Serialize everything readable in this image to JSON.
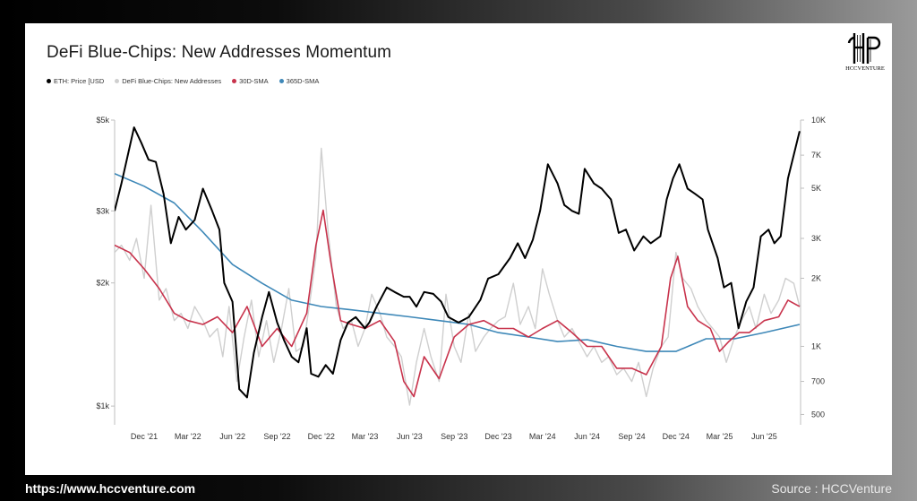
{
  "chart_data": {
    "type": "line",
    "title": "DeFi Blue-Chips: New Addresses Momentum",
    "legend_position": "top-left",
    "grid": false,
    "x_tick_labels": [
      "Dec '21",
      "Mar '22",
      "Jun '22",
      "Sep '22",
      "Dec '22",
      "Mar '23",
      "Jun '23",
      "Sep '23",
      "Dec '23",
      "Mar '24",
      "Jun '24",
      "Sep '24",
      "Dec '24",
      "Mar '25",
      "Jun '25"
    ],
    "x_ticks": [
      "2021-12-01",
      "2022-03-01",
      "2022-06-01",
      "2022-09-01",
      "2022-12-01",
      "2023-03-01",
      "2023-06-01",
      "2023-09-01",
      "2023-12-01",
      "2024-03-01",
      "2024-06-01",
      "2024-09-01",
      "2024-12-01",
      "2025-03-01",
      "2025-06-01"
    ],
    "x_range": [
      "2021-10-01",
      "2025-08-15"
    ],
    "left_axis": {
      "label": "",
      "scale": "log",
      "unit": "USD",
      "range": [
        900,
        5000
      ],
      "ticks": [
        5000,
        3000,
        2000,
        1000
      ],
      "tick_labels": [
        "$5k",
        "$3k",
        "$2k",
        "$1k"
      ]
    },
    "right_axis": {
      "label": "",
      "scale": "log",
      "range": [
        450,
        10000
      ],
      "ticks": [
        10000,
        7000,
        5000,
        3000,
        2000,
        1000,
        700,
        500
      ],
      "tick_labels": [
        "10K",
        "7K",
        "5K",
        "3K",
        "2K",
        "1K",
        "700",
        "500"
      ]
    },
    "series": [
      {
        "name": "ETH: Price [USD",
        "axis": "left",
        "color": "#000000",
        "x": [
          "2021-10-01",
          "2021-10-15",
          "2021-11-01",
          "2021-11-10",
          "2021-11-25",
          "2021-12-10",
          "2021-12-25",
          "2022-01-10",
          "2022-01-25",
          "2022-02-10",
          "2022-02-25",
          "2022-03-15",
          "2022-04-01",
          "2022-04-20",
          "2022-05-05",
          "2022-05-15",
          "2022-06-01",
          "2022-06-15",
          "2022-07-01",
          "2022-07-15",
          "2022-08-01",
          "2022-08-15",
          "2022-09-01",
          "2022-09-15",
          "2022-10-01",
          "2022-10-15",
          "2022-11-01",
          "2022-11-10",
          "2022-11-25",
          "2022-12-10",
          "2022-12-25",
          "2023-01-10",
          "2023-01-25",
          "2023-02-10",
          "2023-03-01",
          "2023-03-10",
          "2023-03-25",
          "2023-04-15",
          "2023-05-01",
          "2023-05-20",
          "2023-06-01",
          "2023-06-15",
          "2023-07-01",
          "2023-07-20",
          "2023-08-05",
          "2023-08-20",
          "2023-09-10",
          "2023-10-01",
          "2023-10-25",
          "2023-11-10",
          "2023-12-01",
          "2023-12-25",
          "2024-01-10",
          "2024-01-25",
          "2024-02-10",
          "2024-02-25",
          "2024-03-12",
          "2024-04-01",
          "2024-04-15",
          "2024-05-01",
          "2024-05-15",
          "2024-05-27",
          "2024-06-15",
          "2024-07-01",
          "2024-07-20",
          "2024-08-05",
          "2024-08-20",
          "2024-09-06",
          "2024-09-25",
          "2024-10-10",
          "2024-10-30",
          "2024-11-12",
          "2024-11-25",
          "2024-12-08",
          "2024-12-25",
          "2025-01-10",
          "2025-01-25",
          "2025-02-05",
          "2025-02-25",
          "2025-03-10",
          "2025-03-25",
          "2025-04-09",
          "2025-04-25",
          "2025-05-10",
          "2025-05-25",
          "2025-06-10",
          "2025-06-22",
          "2025-07-05",
          "2025-07-20",
          "2025-08-05",
          "2025-08-13"
        ],
        "y": [
          3000,
          3500,
          4300,
          4800,
          4400,
          4000,
          3950,
          3300,
          2500,
          2900,
          2700,
          2850,
          3400,
          3000,
          2700,
          2000,
          1800,
          1100,
          1050,
          1350,
          1650,
          1900,
          1600,
          1450,
          1320,
          1280,
          1550,
          1200,
          1180,
          1260,
          1200,
          1450,
          1600,
          1650,
          1550,
          1600,
          1750,
          1950,
          1900,
          1850,
          1850,
          1750,
          1900,
          1880,
          1800,
          1650,
          1600,
          1650,
          1820,
          2050,
          2100,
          2300,
          2500,
          2300,
          2550,
          3000,
          3900,
          3500,
          3100,
          3000,
          2950,
          3800,
          3500,
          3400,
          3200,
          2650,
          2700,
          2400,
          2600,
          2500,
          2600,
          3200,
          3600,
          3900,
          3400,
          3300,
          3200,
          2700,
          2300,
          1950,
          2000,
          1550,
          1800,
          1950,
          2600,
          2700,
          2500,
          2600,
          3600,
          4300,
          4700
        ]
      },
      {
        "name": "DeFi Blue-Chips: New Addresses",
        "axis": "right",
        "color": "#cfcfcf",
        "x": [
          "2021-10-01",
          "2021-10-15",
          "2021-11-01",
          "2021-11-15",
          "2021-12-01",
          "2021-12-15",
          "2022-01-01",
          "2022-01-15",
          "2022-02-01",
          "2022-02-15",
          "2022-03-01",
          "2022-03-15",
          "2022-04-01",
          "2022-04-15",
          "2022-05-01",
          "2022-05-12",
          "2022-05-25",
          "2022-06-10",
          "2022-06-25",
          "2022-07-10",
          "2022-07-25",
          "2022-08-10",
          "2022-08-25",
          "2022-09-10",
          "2022-09-25",
          "2022-10-10",
          "2022-10-25",
          "2022-11-08",
          "2022-11-20",
          "2022-12-01",
          "2022-12-15",
          "2023-01-01",
          "2023-01-15",
          "2023-02-01",
          "2023-02-15",
          "2023-03-01",
          "2023-03-15",
          "2023-04-01",
          "2023-04-15",
          "2023-05-01",
          "2023-05-15",
          "2023-06-01",
          "2023-06-15",
          "2023-07-01",
          "2023-07-15",
          "2023-08-01",
          "2023-08-15",
          "2023-09-01",
          "2023-09-15",
          "2023-10-01",
          "2023-10-15",
          "2023-11-01",
          "2023-11-15",
          "2023-12-01",
          "2023-12-15",
          "2024-01-01",
          "2024-01-15",
          "2024-02-01",
          "2024-02-15",
          "2024-03-01",
          "2024-03-15",
          "2024-04-01",
          "2024-04-15",
          "2024-05-01",
          "2024-05-15",
          "2024-06-01",
          "2024-06-15",
          "2024-07-01",
          "2024-07-15",
          "2024-08-01",
          "2024-08-15",
          "2024-09-01",
          "2024-09-15",
          "2024-10-01",
          "2024-10-15",
          "2024-11-01",
          "2024-11-15",
          "2024-12-01",
          "2024-12-15",
          "2025-01-01",
          "2025-01-15",
          "2025-02-01",
          "2025-02-15",
          "2025-03-01",
          "2025-03-15",
          "2025-04-01",
          "2025-04-15",
          "2025-05-01",
          "2025-05-15",
          "2025-06-01",
          "2025-06-15",
          "2025-07-01",
          "2025-07-15",
          "2025-08-01",
          "2025-08-13"
        ],
        "y": [
          2600,
          2800,
          2400,
          3000,
          2000,
          4200,
          1600,
          1800,
          1300,
          1400,
          1200,
          1500,
          1300,
          1100,
          1200,
          900,
          1500,
          700,
          1100,
          1600,
          900,
          1300,
          850,
          1200,
          1800,
          950,
          1000,
          1600,
          2500,
          7500,
          3200,
          1500,
          1200,
          1300,
          1000,
          1200,
          1700,
          1400,
          1100,
          1000,
          900,
          550,
          850,
          1200,
          900,
          700,
          1700,
          1000,
          850,
          1400,
          950,
          1100,
          1200,
          1300,
          1350,
          1900,
          1250,
          1500,
          1200,
          2200,
          1700,
          1300,
          1100,
          1200,
          1050,
          900,
          1000,
          850,
          900,
          750,
          800,
          700,
          850,
          600,
          800,
          1000,
          1100,
          2600,
          2000,
          1800,
          1500,
          1300,
          1200,
          1100,
          850,
          1100,
          1300,
          1500,
          1200,
          1700,
          1400,
          1600,
          2000,
          1900,
          1500
        ]
      },
      {
        "name": "30D-SMA",
        "axis": "right",
        "color": "#c8334c",
        "x": [
          "2021-10-01",
          "2021-11-01",
          "2021-12-01",
          "2022-01-01",
          "2022-02-01",
          "2022-03-01",
          "2022-04-01",
          "2022-05-01",
          "2022-06-01",
          "2022-07-01",
          "2022-08-01",
          "2022-09-01",
          "2022-10-01",
          "2022-11-01",
          "2022-11-20",
          "2022-12-05",
          "2022-12-20",
          "2023-01-10",
          "2023-02-01",
          "2023-03-01",
          "2023-04-01",
          "2023-05-01",
          "2023-05-20",
          "2023-06-10",
          "2023-07-01",
          "2023-08-01",
          "2023-09-01",
          "2023-10-01",
          "2023-11-01",
          "2023-12-01",
          "2024-01-01",
          "2024-02-01",
          "2024-03-01",
          "2024-04-01",
          "2024-05-01",
          "2024-06-01",
          "2024-07-01",
          "2024-08-01",
          "2024-09-01",
          "2024-10-01",
          "2024-11-01",
          "2024-11-20",
          "2024-12-05",
          "2024-12-25",
          "2025-01-15",
          "2025-02-10",
          "2025-03-01",
          "2025-03-20",
          "2025-04-10",
          "2025-05-01",
          "2025-06-01",
          "2025-07-01",
          "2025-07-20",
          "2025-08-13"
        ],
        "y": [
          2800,
          2600,
          2200,
          1800,
          1400,
          1300,
          1250,
          1350,
          1150,
          1500,
          1000,
          1200,
          1000,
          1400,
          2800,
          4000,
          2400,
          1300,
          1250,
          1200,
          1300,
          1050,
          700,
          600,
          900,
          720,
          1100,
          1250,
          1300,
          1200,
          1200,
          1100,
          1200,
          1300,
          1150,
          1000,
          1000,
          800,
          800,
          750,
          1000,
          2000,
          2500,
          1500,
          1300,
          1200,
          950,
          1050,
          1150,
          1150,
          1300,
          1350,
          1600,
          1500
        ]
      },
      {
        "name": "365D-SMA",
        "axis": "right",
        "color": "#3e88b8",
        "x": [
          "2021-10-01",
          "2021-12-01",
          "2022-02-01",
          "2022-04-01",
          "2022-06-01",
          "2022-08-01",
          "2022-10-01",
          "2022-12-01",
          "2023-02-01",
          "2023-04-01",
          "2023-06-01",
          "2023-08-01",
          "2023-10-01",
          "2023-12-01",
          "2024-02-01",
          "2024-04-01",
          "2024-06-01",
          "2024-08-01",
          "2024-10-01",
          "2024-12-01",
          "2025-02-01",
          "2025-04-01",
          "2025-06-01",
          "2025-08-13"
        ],
        "y": [
          5800,
          5100,
          4300,
          3200,
          2300,
          1900,
          1600,
          1500,
          1450,
          1400,
          1350,
          1300,
          1250,
          1150,
          1100,
          1050,
          1070,
          1000,
          950,
          950,
          1080,
          1080,
          1150,
          1250
        ]
      }
    ]
  },
  "brand": {
    "logo_text": "HCCVENTURE"
  },
  "footer": {
    "url": "https://www.hccventure.com",
    "source": "Source : HCCVenture"
  }
}
